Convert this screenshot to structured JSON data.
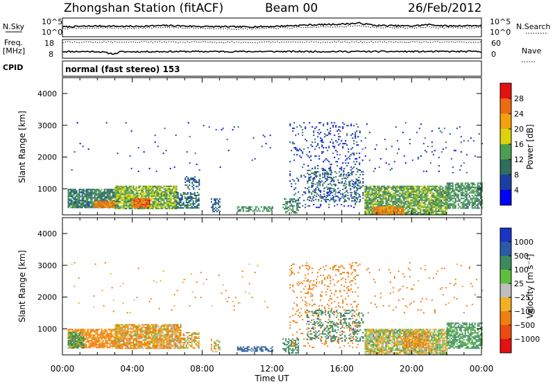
{
  "header": {
    "title": "Zhongshan Station (fitACF)",
    "beam": "Beam 00",
    "date": "26/Feb/2012"
  },
  "summary": {
    "nsky_label": "N.Sky",
    "nsearch_label": "N.Search",
    "freq_label_1": "Freq.",
    "freq_label_2": "[MHz]",
    "nave_label": "Nave",
    "cpid_label": "CPID",
    "cpid_text": "normal (fast stereo) 153",
    "noise_ticks": [
      "10^5",
      "10^0"
    ],
    "freq_ticks": [
      "18",
      "8"
    ],
    "nave_ticks": [
      "60",
      "0"
    ]
  },
  "axes": {
    "xlabel": "Time UT",
    "ylabel": "Slant Range [km]",
    "x_ticks": [
      "00:00",
      "04:00",
      "08:00",
      "12:00",
      "16:00",
      "20:00",
      "00:00"
    ],
    "y_ticks": [
      "1000",
      "2000",
      "3000",
      "4000"
    ]
  },
  "power_scale": {
    "label": "Power [dB]",
    "ticks": [
      "4",
      "8",
      "12",
      "16",
      "20",
      "24",
      "28"
    ],
    "colors": [
      "#0000ff",
      "#1a3fa6",
      "#2e6e5c",
      "#4c9e50",
      "#dcd30c",
      "#f3a20c",
      "#ee6a10",
      "#e61010"
    ]
  },
  "velocity_scale": {
    "label": "Velocity [m s⁻¹]",
    "ticks": [
      "1000",
      "500",
      "100",
      "25",
      "−25",
      "−100",
      "−500",
      "−1000"
    ],
    "colors": [
      "#1a34c8",
      "#2a5aa8",
      "#3d8a5f",
      "#5fbf3c",
      "#bebebe",
      "#f3b020",
      "#ef7f10",
      "#ec4a10",
      "#e61010"
    ]
  },
  "chart_data": [
    {
      "type": "line",
      "title": "N.Sky / N.Search",
      "x_range": [
        0,
        24
      ],
      "series": [
        {
          "name": "N.Sky",
          "style": "solid",
          "x": [
            0,
            2,
            4,
            6,
            8,
            10,
            12,
            14,
            16,
            17,
            18,
            20,
            21,
            22,
            24
          ],
          "y": [
            2.1,
            2.3,
            2.2,
            2.4,
            2.2,
            2.1,
            2.2,
            2.5,
            2.7,
            2.9,
            2.4,
            2.3,
            2.6,
            2.3,
            2.4
          ]
        },
        {
          "name": "N.Search",
          "style": "dotted",
          "x": [
            0,
            2,
            4,
            6,
            8,
            10,
            12,
            14,
            16,
            17,
            18,
            20,
            21,
            22,
            24
          ],
          "y": [
            1.7,
            1.9,
            1.8,
            2.0,
            1.8,
            1.7,
            1.8,
            2.0,
            2.2,
            2.3,
            2.0,
            1.9,
            2.1,
            1.9,
            2.0
          ]
        }
      ]
    },
    {
      "type": "line",
      "title": "Freq. / Nave",
      "x_range": [
        0,
        24
      ],
      "series": [
        {
          "name": "Freq. [MHz]",
          "style": "solid",
          "x": [
            0,
            2,
            2.3,
            3,
            3.3,
            6,
            12,
            18,
            24
          ],
          "y": [
            11,
            11,
            10.5,
            9.2,
            10.8,
            11,
            11,
            11,
            11
          ]
        },
        {
          "name": "Nave",
          "style": "dotted",
          "x": [
            0,
            6,
            12,
            18,
            24
          ],
          "y": [
            18,
            18,
            18,
            18,
            18
          ]
        }
      ]
    },
    {
      "type": "heatmap",
      "title": "Power [dB]",
      "x_range": [
        0,
        24
      ],
      "y_range": [
        180,
        4500
      ],
      "regions": [
        {
          "x": [
            0.3,
            3.2
          ],
          "y": [
            400,
            1000
          ],
          "density": 0.85,
          "value_dB": 11
        },
        {
          "x": [
            1.8,
            3.0
          ],
          "y": [
            420,
            620
          ],
          "density": 0.9,
          "value_dB": 24
        },
        {
          "x": [
            3.0,
            6.5
          ],
          "y": [
            400,
            1100
          ],
          "density": 0.85,
          "value_dB": 15
        },
        {
          "x": [
            4.0,
            5.0
          ],
          "y": [
            420,
            700
          ],
          "density": 0.9,
          "value_dB": 26
        },
        {
          "x": [
            6.5,
            7.8
          ],
          "y": [
            400,
            900
          ],
          "density": 0.6,
          "value_dB": 10
        },
        {
          "x": [
            7.0,
            7.8
          ],
          "y": [
            1000,
            1400
          ],
          "density": 0.4,
          "value_dB": 8
        },
        {
          "x": [
            8.5,
            9.0
          ],
          "y": [
            300,
            700
          ],
          "density": 0.5,
          "value_dB": 8
        },
        {
          "x": [
            10.0,
            12.0
          ],
          "y": [
            280,
            450
          ],
          "density": 0.6,
          "value_dB": 12
        },
        {
          "x": [
            12.6,
            13.5
          ],
          "y": [
            250,
            700
          ],
          "density": 0.5,
          "value_dB": 12
        },
        {
          "x": [
            13.0,
            17.0
          ],
          "y": [
            400,
            3100
          ],
          "density": 0.12,
          "value_dB": 6
        },
        {
          "x": [
            14.0,
            17.2
          ],
          "y": [
            600,
            1600
          ],
          "density": 0.3,
          "value_dB": 9
        },
        {
          "x": [
            17.3,
            22.0
          ],
          "y": [
            200,
            1100
          ],
          "density": 0.85,
          "value_dB": 14
        },
        {
          "x": [
            17.8,
            19.5
          ],
          "y": [
            200,
            450
          ],
          "density": 0.9,
          "value_dB": 24
        },
        {
          "x": [
            22.0,
            24.0
          ],
          "y": [
            400,
            1200
          ],
          "density": 0.7,
          "value_dB": 12
        },
        {
          "x": [
            0.5,
            12.0
          ],
          "y": [
            1500,
            3100
          ],
          "density": 0.01,
          "value_dB": 5
        },
        {
          "x": [
            17.0,
            24.0
          ],
          "y": [
            1500,
            3100
          ],
          "density": 0.03,
          "value_dB": 6
        }
      ]
    },
    {
      "type": "heatmap",
      "title": "Velocity [m s⁻¹]",
      "x_range": [
        0,
        24
      ],
      "y_range": [
        180,
        4500
      ],
      "regions": [
        {
          "x": [
            0.3,
            3.2
          ],
          "y": [
            400,
            1000
          ],
          "density": 0.8,
          "value_ms": -150
        },
        {
          "x": [
            0.3,
            1.2
          ],
          "y": [
            400,
            900
          ],
          "density": 0.7,
          "value_ms": 150
        },
        {
          "x": [
            3.0,
            6.8
          ],
          "y": [
            400,
            1150
          ],
          "density": 0.85,
          "value_ms": -80
        },
        {
          "x": [
            6.5,
            7.8
          ],
          "y": [
            400,
            900
          ],
          "density": 0.6,
          "value_ms": -60
        },
        {
          "x": [
            8.5,
            9.0
          ],
          "y": [
            300,
            700
          ],
          "density": 0.5,
          "value_ms": -40
        },
        {
          "x": [
            10.0,
            12.0
          ],
          "y": [
            280,
            450
          ],
          "density": 0.6,
          "value_ms": 600
        },
        {
          "x": [
            12.6,
            13.5
          ],
          "y": [
            250,
            700
          ],
          "density": 0.5,
          "value_ms": 300
        },
        {
          "x": [
            13.0,
            17.0
          ],
          "y": [
            400,
            3100
          ],
          "density": 0.12,
          "value_ms": -300
        },
        {
          "x": [
            14.0,
            17.2
          ],
          "y": [
            600,
            1600
          ],
          "density": 0.3,
          "value_ms": 400
        },
        {
          "x": [
            17.3,
            22.0
          ],
          "y": [
            200,
            1000
          ],
          "density": 0.85,
          "value_ms": 0
        },
        {
          "x": [
            19.5,
            21.0
          ],
          "y": [
            400,
            900
          ],
          "density": 0.6,
          "value_ms": -150
        },
        {
          "x": [
            22.0,
            24.0
          ],
          "y": [
            400,
            1200
          ],
          "density": 0.7,
          "value_ms": 150
        },
        {
          "x": [
            0.5,
            12.0
          ],
          "y": [
            1500,
            3100
          ],
          "density": 0.01,
          "value_ms": -100
        },
        {
          "x": [
            17.0,
            24.0
          ],
          "y": [
            1500,
            3100
          ],
          "density": 0.03,
          "value_ms": -200
        }
      ]
    }
  ]
}
